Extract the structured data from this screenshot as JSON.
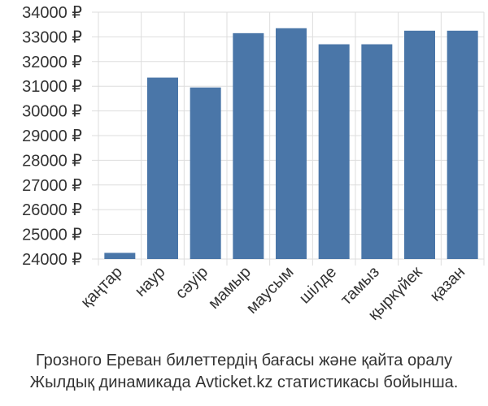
{
  "chart_data": {
    "type": "bar",
    "categories": [
      "қаңтар",
      "наур",
      "сәуір",
      "мамыр",
      "маусым",
      "шілде",
      "тамыз",
      "қыркүйек",
      "қазан"
    ],
    "values": [
      24250,
      31350,
      30950,
      33150,
      33350,
      32700,
      32700,
      33250,
      33250
    ],
    "ylim": [
      24000,
      34000
    ],
    "yticks": [
      24000,
      25000,
      26000,
      27000,
      28000,
      29000,
      30000,
      31000,
      32000,
      33000,
      34000
    ],
    "ytick_suffix": " ₽",
    "grid": true,
    "bar_color": "#4a76a8",
    "grid_color": "#dddddd",
    "caption": [
      "Грозного Ереван билеттердің бағасы және қайта оралу",
      "Жылдық динамикада Avticket.kz статистикасы бойынша."
    ]
  }
}
